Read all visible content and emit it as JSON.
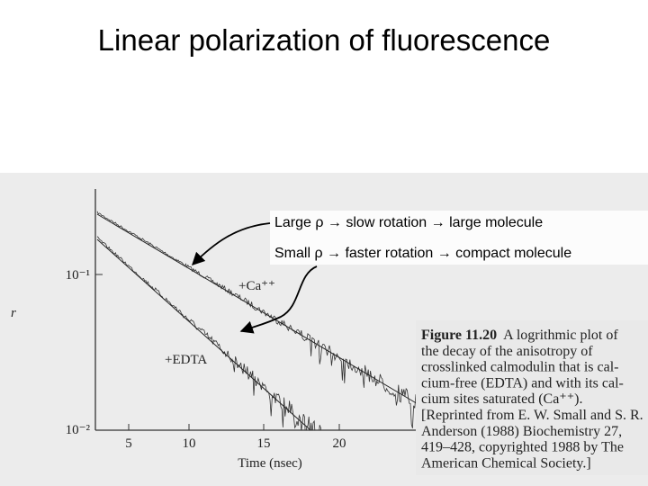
{
  "title": "Linear polarization of fluorescence",
  "annotations": [
    "Large ρ → slow rotation → large molecule",
    "Small ρ → faster rotation → compact molecule"
  ],
  "figure": {
    "y_axis_label": "r",
    "y_ticks": [
      "10⁻¹",
      "10⁻²"
    ],
    "x_ticks": [
      "5",
      "10",
      "15",
      "20"
    ],
    "x_axis_label": "Time (nsec)",
    "trace_labels": [
      "+Ca⁺⁺",
      "+EDTA"
    ],
    "caption": {
      "label": "Figure 11.20",
      "lines": [
        "A logrithmic plot of",
        "the decay of the anisotropy of",
        "crosslinked calmodulin that is cal-",
        "cium-free (EDTA) and with its cal-",
        "cium sites saturated (Ca⁺⁺).",
        "[Reprinted from E. W. Small and S. R.",
        "Anderson (1988) Biochemistry 27,",
        "419–428, copyrighted 1988 by The",
        "American Chemical Society.]"
      ]
    }
  }
}
